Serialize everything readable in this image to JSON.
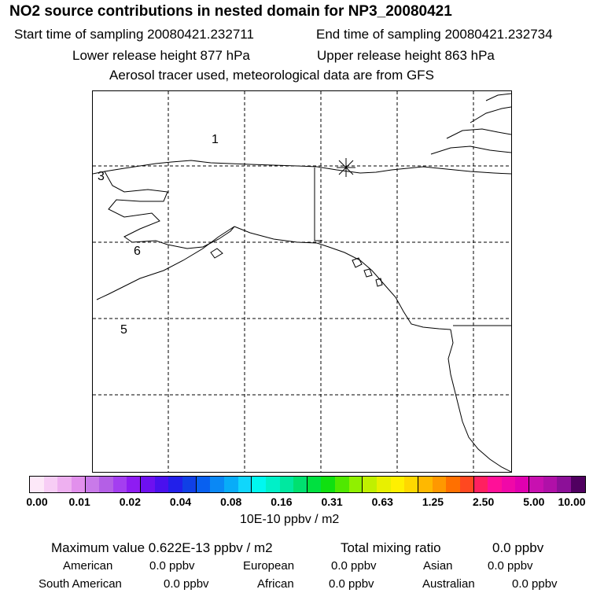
{
  "header": {
    "title": "NO2 source contributions in nested domain for NP3_20080421",
    "start_time": "Start time of sampling 20080421.232711",
    "end_time": "End time of sampling 20080421.232734",
    "lower_height": "Lower release height  877 hPa",
    "upper_height": "Upper release height  863 hPa",
    "tracer_info": "Aerosol tracer used, meteorological data are from GFS"
  },
  "map": {
    "region_labels": [
      "1",
      "3",
      "6",
      "5"
    ],
    "source_marker": "asterisk"
  },
  "colorbar": {
    "colors": [
      "#fde8f8",
      "#f7cdf5",
      "#eeb0f0",
      "#e290ec",
      "#c97ae9",
      "#b45fe6",
      "#a43ef0",
      "#8e1cf2",
      "#6e10f0",
      "#4a10ee",
      "#2220ea",
      "#1040e6",
      "#0860f0",
      "#0a88f5",
      "#08acf8",
      "#10d6fc",
      "#00f8f0",
      "#00f0c8",
      "#00e8a0",
      "#00e070",
      "#00e040",
      "#10e010",
      "#50e800",
      "#90f000",
      "#c0f000",
      "#e8f000",
      "#fff000",
      "#ffd800",
      "#ffb800",
      "#ff9800",
      "#ff7000",
      "#ff4820",
      "#ff2060",
      "#ff1098",
      "#f008a8",
      "#e000b0",
      "#c810b0",
      "#b010a8",
      "#8c1098",
      "#500060"
    ],
    "tick_labels": [
      "0.00",
      "0.01",
      "0.02",
      "0.04",
      "0.08",
      "0.16",
      "0.31",
      "0.63",
      "1.25",
      "2.50",
      "5.00",
      "10.00"
    ],
    "units": "10E-10 ppbv / m2"
  },
  "stats": {
    "max_value": "Maximum value  0.622E-13 ppbv / m2",
    "total_mixing_label": "Total mixing ratio",
    "total_mixing_value": "0.0 ppbv"
  },
  "regions": [
    {
      "name": "American",
      "value": "0.0 ppbv"
    },
    {
      "name": "European",
      "value": "0.0 ppbv"
    },
    {
      "name": "Asian",
      "value": "0.0 ppbv"
    },
    {
      "name": "South American",
      "value": "0.0 ppbv"
    },
    {
      "name": "African",
      "value": "0.0 ppbv"
    },
    {
      "name": "Australian",
      "value": "0.0 ppbv"
    }
  ]
}
